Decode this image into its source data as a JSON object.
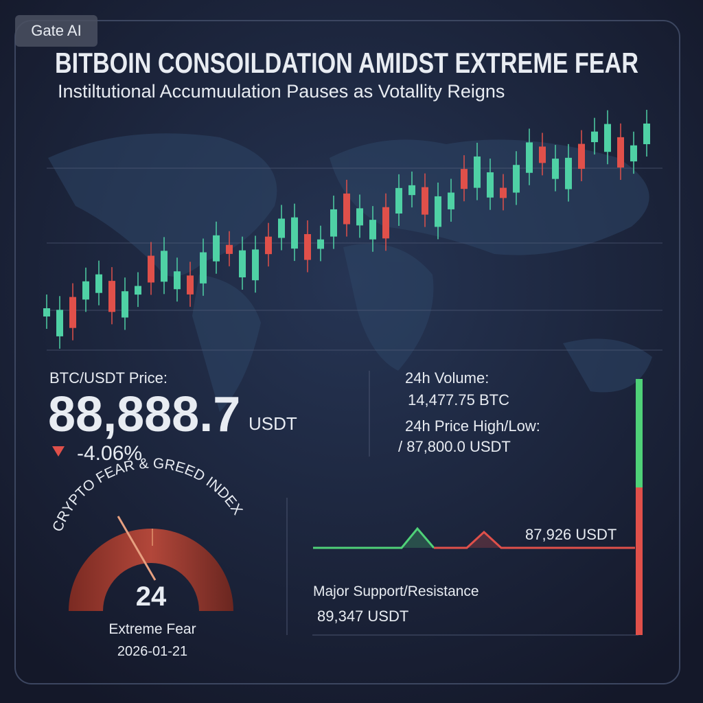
{
  "badge": "Gate AI",
  "header": {
    "title": "BITBOIN CONSOILDATION AMIDST EXTREME FEAR",
    "subtitle": "Instiltutional Accumuulation Pauses as Votallity Reigns"
  },
  "price": {
    "label": "BTC/USDT Price:",
    "value": "88,888.7",
    "unit": "USDT",
    "change": "-4.06%"
  },
  "stats": {
    "volume_label": "24h Volume:",
    "volume": "14,477.75 BTC",
    "range_label": "24h Price High/Low:",
    "range": "/ 87,800.0 USDT"
  },
  "gauge": {
    "title": "CRYPTO FEAR & GREED INDEX",
    "value": "24",
    "label": "Extreme Fear",
    "date": "2026-01-21"
  },
  "levels": {
    "current": "87,926 USDT",
    "label": "Major Support/Resistance",
    "support": "89,347 USDT"
  }
}
